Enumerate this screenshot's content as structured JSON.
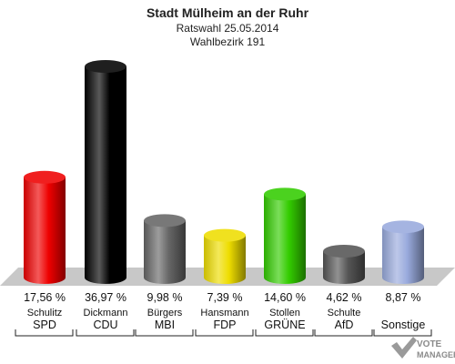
{
  "chart_data": {
    "type": "bar",
    "title": "Stadt Mülheim an der Ruhr",
    "subtitle_1": "Ratswahl 25.05.2014",
    "subtitle_2": "Wahlbezirk 191",
    "ylim": [
      0,
      40
    ],
    "grid": false,
    "legend": "none",
    "candidates": [
      "Schulitz",
      "Dickmann",
      "Bürgers",
      "Hansmann",
      "Stollen",
      "Schulte",
      ""
    ],
    "categories": [
      "SPD",
      "CDU",
      "MBI",
      "FDP",
      "GRÜNE",
      "AfD",
      "Sonstige"
    ],
    "values": [
      17.56,
      36.97,
      9.98,
      7.39,
      14.6,
      4.62,
      8.87
    ],
    "value_labels": [
      "17,56 %",
      "36,97 %",
      "9,98 %",
      "7,39 %",
      "14,60 %",
      "4,62 %",
      "8,87 %"
    ],
    "colors": [
      "#ee0000",
      "#000000",
      "#666666",
      "#eedd00",
      "#33cc00",
      "#555555",
      "#99aadd"
    ]
  },
  "logo": {
    "line1": "VOTE",
    "line2": "MANAGER",
    "icon": "vote-manager-checkmark-icon"
  }
}
